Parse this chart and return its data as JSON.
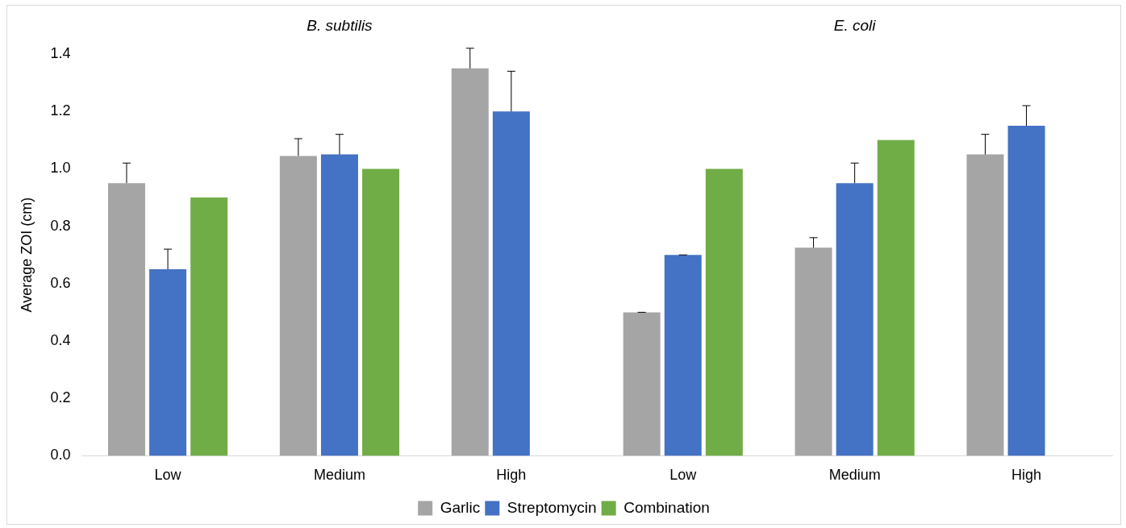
{
  "chart_data": {
    "type": "bar",
    "ylabel": "Average ZOI (cm)",
    "categories": [
      "Low",
      "Medium",
      "High",
      "Low",
      "Medium",
      "High"
    ],
    "annotations": [
      "B. subtilis",
      "E. coli"
    ],
    "series": [
      {
        "name": "Garlic",
        "color": "#a5a5a5",
        "values": [
          0.95,
          1.045,
          1.35,
          0.5,
          0.725,
          1.05
        ],
        "errors": [
          [
            0.95,
            1.02
          ],
          [
            1.045,
            1.105
          ],
          [
            1.35,
            1.42
          ],
          [
            0.5,
            0.5
          ],
          [
            0.725,
            0.76
          ],
          [
            1.05,
            1.12
          ]
        ]
      },
      {
        "name": "Streptomycin",
        "color": "#4472c4",
        "values": [
          0.65,
          1.05,
          1.2,
          0.7,
          0.95,
          1.15
        ],
        "errors": [
          [
            0.65,
            0.72
          ],
          [
            1.05,
            1.12
          ],
          [
            1.2,
            1.34
          ],
          [
            0.7,
            0.7
          ],
          [
            0.95,
            1.02
          ],
          [
            1.15,
            1.22
          ]
        ]
      },
      {
        "name": "Combination",
        "color": "#70ad47",
        "values": [
          0.9,
          1.0,
          null,
          1.0,
          1.1,
          null
        ]
      }
    ],
    "ylim": [
      0,
      1.4
    ],
    "yticks": [
      {
        "value": 0,
        "label": "0.0"
      },
      {
        "value": 0.2,
        "label": "0.2"
      },
      {
        "value": 0.4,
        "label": "0.4"
      },
      {
        "value": 0.6,
        "label": "0.6"
      },
      {
        "value": 0.8,
        "label": "0.8"
      },
      {
        "value": 1,
        "label": "1.0"
      },
      {
        "value": 1.2,
        "label": "1.2"
      },
      {
        "value": 1.4,
        "label": "1.4"
      }
    ],
    "grid": false,
    "legend": "bottom"
  }
}
